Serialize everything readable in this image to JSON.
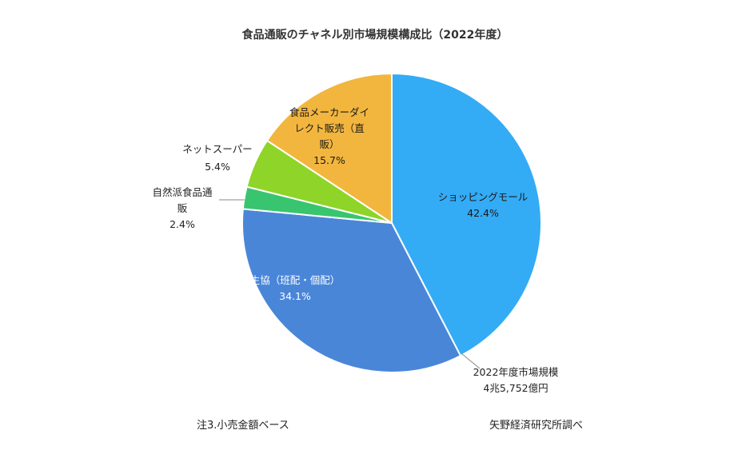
{
  "chart_data": {
    "type": "pie",
    "title": "食品通販のチャネル別市場規模構成比（2022年度）",
    "slices": [
      {
        "label_lines": [
          "ショッピングモール"
        ],
        "value": 42.4,
        "value_text": "42.4%",
        "color": "#34abf5"
      },
      {
        "label_lines": [
          "生協（班配・個配）"
        ],
        "value": 34.1,
        "value_text": "34.1%",
        "color": "#4a86d8"
      },
      {
        "label_lines": [
          "自然派食品通",
          "販"
        ],
        "value": 2.4,
        "value_text": "2.4%",
        "color": "#39c56f"
      },
      {
        "label_lines": [
          "ネットスーパー"
        ],
        "value": 5.4,
        "value_text": "5.4%",
        "color": "#8fd428"
      },
      {
        "label_lines": [
          "食品メーカーダイ",
          "レクト販売（直",
          "販）"
        ],
        "value": 15.7,
        "value_text": "15.7%",
        "color": "#f2b63e"
      }
    ],
    "start_angle_deg": 0,
    "direction": "clockwise"
  },
  "market_size": {
    "line1": "2022年度市場規模",
    "line2": "4兆5,752億円"
  },
  "notes": {
    "left": "注3.小売金額ベース",
    "right": "矢野経済研究所調べ"
  }
}
